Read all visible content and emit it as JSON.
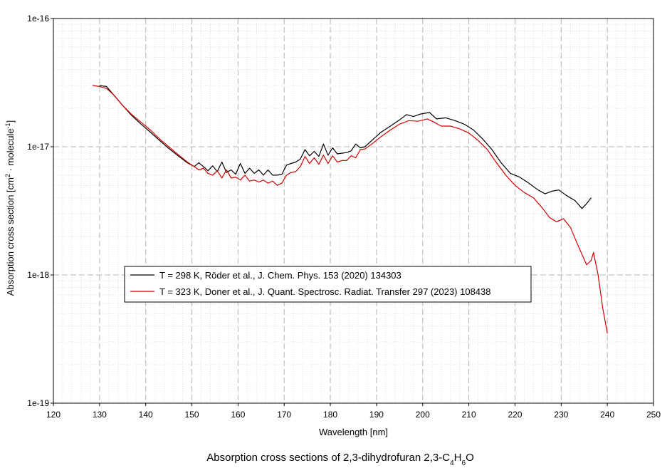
{
  "chart_data": {
    "type": "line",
    "title": "Absorption cross sections of 2,3-dihydrofuran 2,3-C",
    "title_formula": {
      "sub1": "4",
      "mid": "H",
      "sub2": "6",
      "tail": "O"
    },
    "xlabel": "Wavelength [nm]",
    "ylabel_parts": {
      "main": "Absorption cross section [cm",
      "sup1": "2",
      "mid": " · molecule",
      "sup2": "-1",
      "tail": "]"
    },
    "xlim": [
      120,
      250
    ],
    "ylim": [
      1e-19,
      1e-16
    ],
    "yscale": "log",
    "x_ticks": [
      "120",
      "130",
      "140",
      "150",
      "160",
      "170",
      "180",
      "190",
      "200",
      "210",
      "220",
      "230",
      "240",
      "250"
    ],
    "y_ticks": [
      {
        "value": 1e-16,
        "label": "1e-16"
      },
      {
        "value": 1e-17,
        "label": "1e-17"
      },
      {
        "value": 1e-18,
        "label": "1e-18"
      },
      {
        "value": 1e-19,
        "label": "1e-19"
      }
    ],
    "grid": true,
    "legend_position": "lower-left",
    "series": [
      {
        "name": "T = 298 K, Röder et al., J. Chem. Phys. 153 (2020) 134303",
        "color": "#000000",
        "x": [
          130.0,
          131.5,
          133,
          135,
          137,
          139,
          141,
          143,
          145,
          147,
          149,
          150.5,
          151.5,
          152.5,
          153.5,
          154.5,
          155.5,
          156.5,
          157.5,
          158.5,
          159.5,
          160.5,
          161.5,
          162.5,
          163.5,
          164.5,
          165.5,
          166.5,
          167.5,
          168.5,
          169.5,
          170.5,
          171.5,
          172.5,
          173.5,
          174.5,
          175.5,
          176.5,
          177.5,
          178.5,
          179.5,
          180.5,
          181.5,
          182.5,
          183.5,
          184.5,
          185.5,
          186.5,
          187.5,
          189,
          191,
          193,
          195,
          196.5,
          198,
          199.5,
          201.5,
          203,
          205,
          207,
          209,
          211,
          213,
          215,
          217,
          219,
          221,
          223,
          225,
          226.5,
          228,
          229.5,
          231,
          233,
          234.5,
          235.5,
          236.5
        ],
        "y": [
          3e-17,
          2.95e-17,
          2.55e-17,
          2.1e-17,
          1.75e-17,
          1.5e-17,
          1.3e-17,
          1.12e-17,
          9.7e-18,
          8.5e-18,
          7.5e-18,
          7e-18,
          7.5e-18,
          7e-18,
          6.5e-18,
          7.1e-18,
          6.4e-18,
          7.6e-18,
          6.3e-18,
          6.6e-18,
          6.1e-18,
          7.4e-18,
          6.2e-18,
          6.8e-18,
          6.2e-18,
          6.6e-18,
          6e-18,
          6.6e-18,
          6e-18,
          6e-18,
          6.1e-18,
          7.2e-18,
          7.4e-18,
          7.6e-18,
          8e-18,
          9.5e-18,
          8.5e-18,
          9.2e-18,
          8.4e-18,
          1.05e-17,
          8.6e-18,
          9.8e-18,
          8.8e-18,
          8.9e-18,
          9e-18,
          9.3e-18,
          1.05e-17,
          9.8e-18,
          1e-17,
          1.12e-17,
          1.3e-17,
          1.45e-17,
          1.62e-17,
          1.78e-17,
          1.72e-17,
          1.8e-17,
          1.85e-17,
          1.65e-17,
          1.68e-17,
          1.6e-17,
          1.5e-17,
          1.35e-17,
          1.15e-17,
          9.5e-18,
          7.5e-18,
          6.2e-18,
          5.8e-18,
          5.2e-18,
          4.6e-18,
          4.3e-18,
          4.5e-18,
          4.6e-18,
          4.2e-18,
          3.8e-18,
          3.3e-18,
          3.6e-18,
          4e-18
        ]
      },
      {
        "name": "T = 323 K, Doner et al., J. Quant. Spectrosc. Radiat. Transfer 297 (2023) 108438",
        "color": "#d00000",
        "x": [
          128.5,
          130,
          131.5,
          133,
          135,
          137,
          139,
          141,
          143,
          145,
          147,
          149,
          150.5,
          151.5,
          152.5,
          153.5,
          154.5,
          155.5,
          156.5,
          157.5,
          158.5,
          159.5,
          160.5,
          161.5,
          162.5,
          163.5,
          164.5,
          165.5,
          166.5,
          167.5,
          168.5,
          169.5,
          170.5,
          171.5,
          172.5,
          173.5,
          174.5,
          175.5,
          176.5,
          177.5,
          178.5,
          179.5,
          180.5,
          181.5,
          182.5,
          183.5,
          184.5,
          185.5,
          186.5,
          187.5,
          189,
          191,
          193,
          195,
          197,
          199,
          201,
          202.5,
          204,
          206,
          208,
          210,
          212,
          214,
          216,
          218,
          220,
          222,
          224,
          226,
          227.5,
          229,
          230.5,
          232,
          233.5,
          234.5,
          235.5,
          236.5,
          237,
          238,
          239,
          240
        ],
        "y": [
          3e-17,
          2.95e-17,
          2.85e-17,
          2.55e-17,
          2.1e-17,
          1.78e-17,
          1.55e-17,
          1.35e-17,
          1.15e-17,
          1e-17,
          8.7e-18,
          7.6e-18,
          7e-18,
          6.6e-18,
          6.8e-18,
          6.2e-18,
          6e-18,
          6.5e-18,
          5.7e-18,
          6.6e-18,
          5.7e-18,
          5.8e-18,
          5.5e-18,
          6e-18,
          5.4e-18,
          5.5e-18,
          5.3e-18,
          5.5e-18,
          5.2e-18,
          5.4e-18,
          5e-18,
          5.2e-18,
          6e-18,
          6.3e-18,
          6.4e-18,
          7e-18,
          8.4e-18,
          7.4e-18,
          8.2e-18,
          7.3e-18,
          8.6e-18,
          7.4e-18,
          8.5e-18,
          7.6e-18,
          7.8e-18,
          7.8e-18,
          8.5e-18,
          8.2e-18,
          9.5e-18,
          9.6e-18,
          1.05e-17,
          1.2e-17,
          1.35e-17,
          1.5e-17,
          1.6e-17,
          1.58e-17,
          1.65e-17,
          1.55e-17,
          1.45e-17,
          1.45e-17,
          1.38e-17,
          1.28e-17,
          1.12e-17,
          9.5e-18,
          7.5e-18,
          6e-18,
          5e-18,
          4.4e-18,
          4e-18,
          3.3e-18,
          2.8e-18,
          2.6e-18,
          2.75e-18,
          2.35e-18,
          1.75e-18,
          1.45e-18,
          1.2e-18,
          1.3e-18,
          1.5e-18,
          1e-18,
          5.5e-19,
          3.5e-19
        ]
      }
    ]
  }
}
